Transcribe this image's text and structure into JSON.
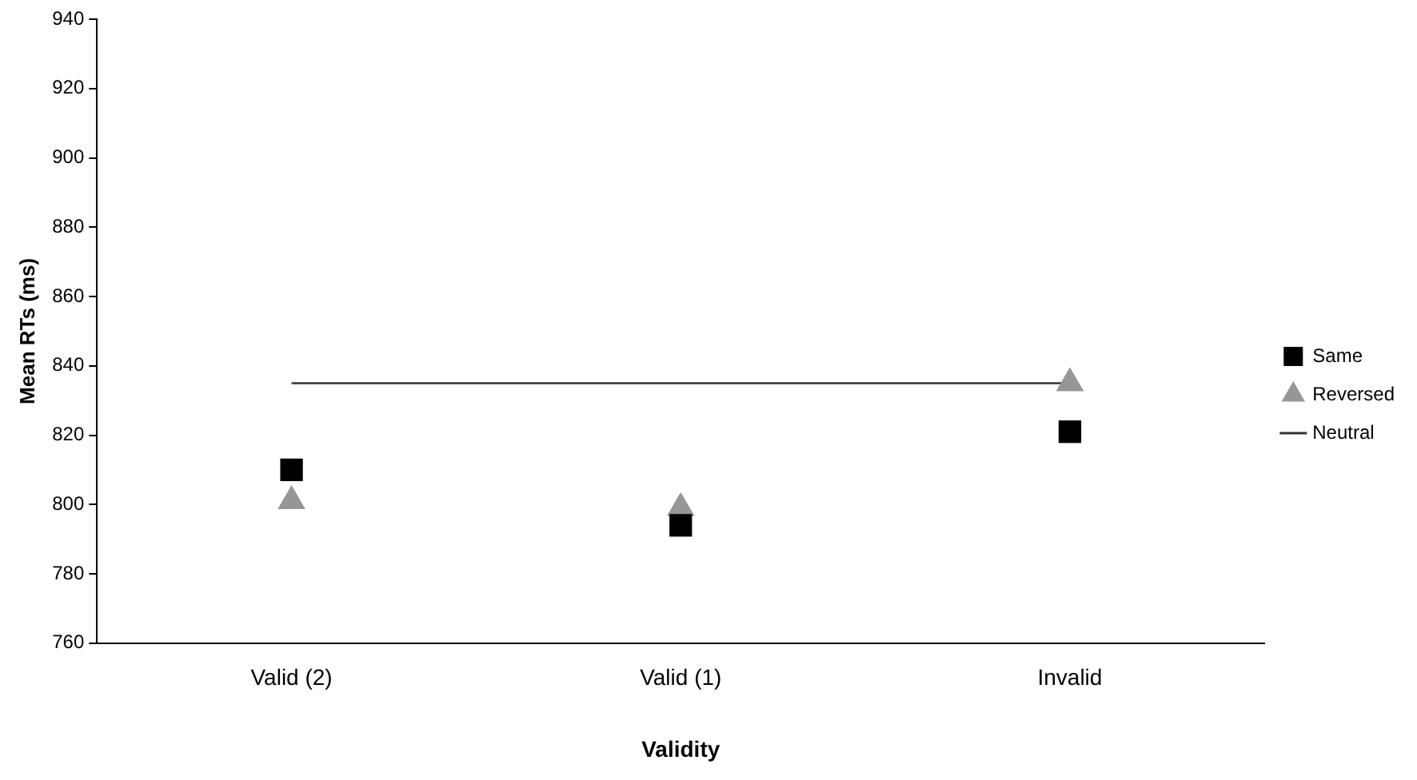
{
  "chart_data": {
    "type": "scatter",
    "xlabel": "Validity",
    "ylabel": "Mean RTs (ms)",
    "categories": [
      "Valid (2)",
      "Valid (1)",
      "Invalid"
    ],
    "series": [
      {
        "name": "Same",
        "color": "#000000",
        "marker": "square",
        "values": [
          810,
          794,
          821
        ]
      },
      {
        "name": "Reversed",
        "color": "#969696",
        "marker": "triangle",
        "values": [
          801,
          799,
          835
        ]
      },
      {
        "name": "Neutral",
        "type": "line",
        "color": "#333333",
        "marker": "none",
        "line_style": "solid",
        "values": [
          835,
          835,
          835
        ]
      }
    ],
    "ylim": [
      760,
      940
    ],
    "yticks": [
      760,
      780,
      800,
      820,
      840,
      860,
      880,
      900,
      920,
      940
    ],
    "grid": false,
    "legend": "right"
  }
}
